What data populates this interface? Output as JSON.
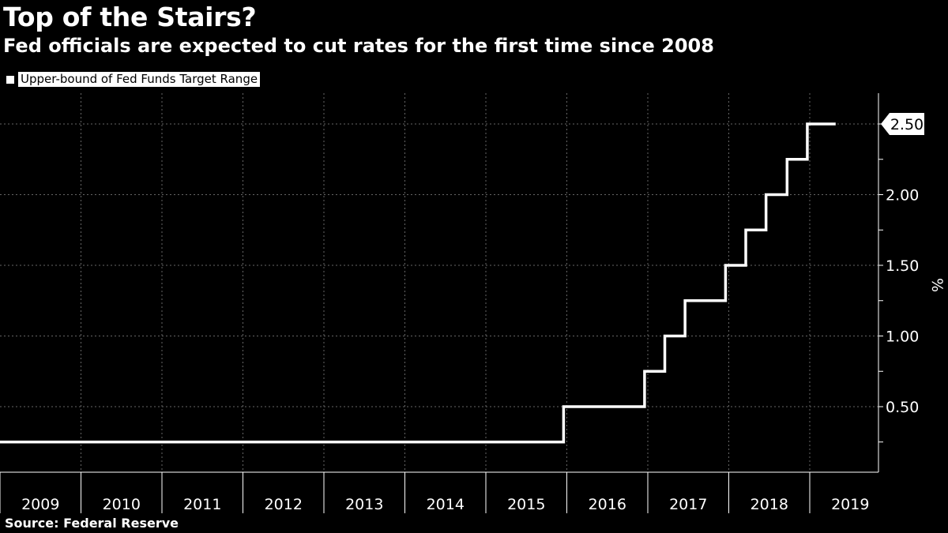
{
  "header": {
    "title": "Top of the Stairs?",
    "subtitle": "Fed officials are expected to cut rates for the first time since 2008"
  },
  "legend": {
    "label": "Upper-bound of Fed Funds Target Range"
  },
  "footer": {
    "source": "Source: Federal Reserve"
  },
  "colors": {
    "background": "#000000",
    "line": "#ffffff",
    "grid": "#666666"
  },
  "chart_data": {
    "type": "line",
    "step": true,
    "title": "Top of the Stairs?",
    "subtitle": "Fed officials are expected to cut rates for the first time since 2008",
    "ylabel": "%",
    "xlabel": "",
    "ylim": [
      0,
      2.65
    ],
    "xlim": [
      2009.0,
      2019.55
    ],
    "yticks": [
      0.5,
      1.0,
      1.5,
      2.0,
      2.5
    ],
    "ytick_labels": [
      "0.50",
      "1.00",
      "1.50",
      "2.00"
    ],
    "xtick_labels": [
      "2009",
      "2010",
      "2011",
      "2012",
      "2013",
      "2014",
      "2015",
      "2016",
      "2017",
      "2018",
      "2019"
    ],
    "last_value_label": "2.50",
    "legend_position": "top-left",
    "grid": true,
    "series": [
      {
        "name": "Upper-bound of Fed Funds Target Range",
        "points": [
          {
            "x": 2009.0,
            "y": 0.25
          },
          {
            "x": 2015.96,
            "y": 0.5
          },
          {
            "x": 2016.96,
            "y": 0.75
          },
          {
            "x": 2017.21,
            "y": 1.0
          },
          {
            "x": 2017.46,
            "y": 1.25
          },
          {
            "x": 2017.96,
            "y": 1.5
          },
          {
            "x": 2018.21,
            "y": 1.75
          },
          {
            "x": 2018.46,
            "y": 2.0
          },
          {
            "x": 2018.72,
            "y": 2.25
          },
          {
            "x": 2018.97,
            "y": 2.5
          },
          {
            "x": 2019.32,
            "y": 2.5
          }
        ]
      }
    ]
  }
}
